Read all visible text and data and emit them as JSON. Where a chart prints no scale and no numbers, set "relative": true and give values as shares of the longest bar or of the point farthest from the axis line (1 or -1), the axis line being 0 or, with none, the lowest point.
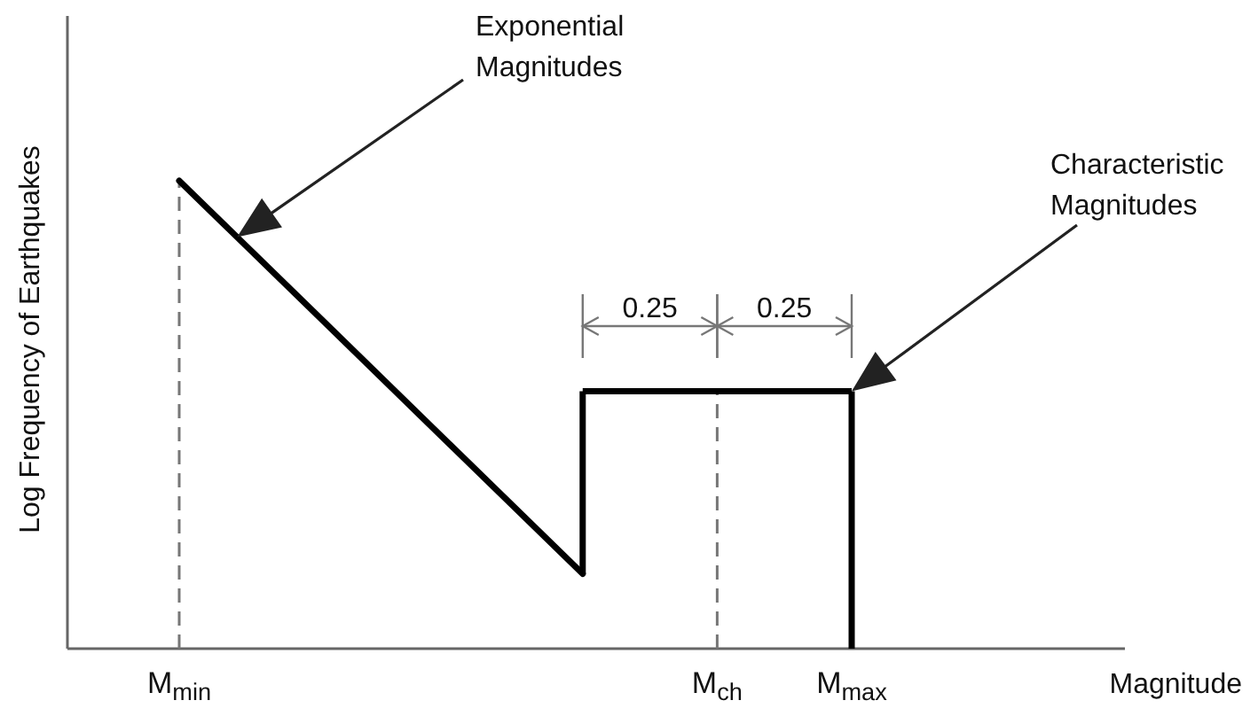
{
  "chart_data": {
    "type": "line",
    "relative": true,
    "ylabel": "Log Frequency of Earthquakes",
    "categories": [
      "M$_{min}$",
      null,
      null,
      null,
      "M$_{ch}$",
      "M$_{max}$"
    ],
    "series": [
      {
        "color": "#000000",
        "values": [
          1,
          0.72,
          0.44,
          0.16,
          null,
          null
        ]
      },
      {
        "type": "step",
        "color": "#000000",
        "values": [
          null,
          null,
          null,
          0.55,
          0.55,
          0.55
        ]
      }
    ],
    "ref_lines": [
      {
        "axis": "x",
        "value": "M$_{min}$",
        "color": "#777777",
        "line_style": "dashed"
      },
      {
        "axis": "x",
        "value": "M$_{ch}$",
        "color": "#777777",
        "line_style": "dashed"
      }
    ],
    "annotations": [
      "Exponential Magnitudes",
      "Characteristic Magnitudes",
      "0.25",
      "0.25",
      "Magnitude"
    ],
    "marker": "none",
    "line_style": "solid"
  }
}
